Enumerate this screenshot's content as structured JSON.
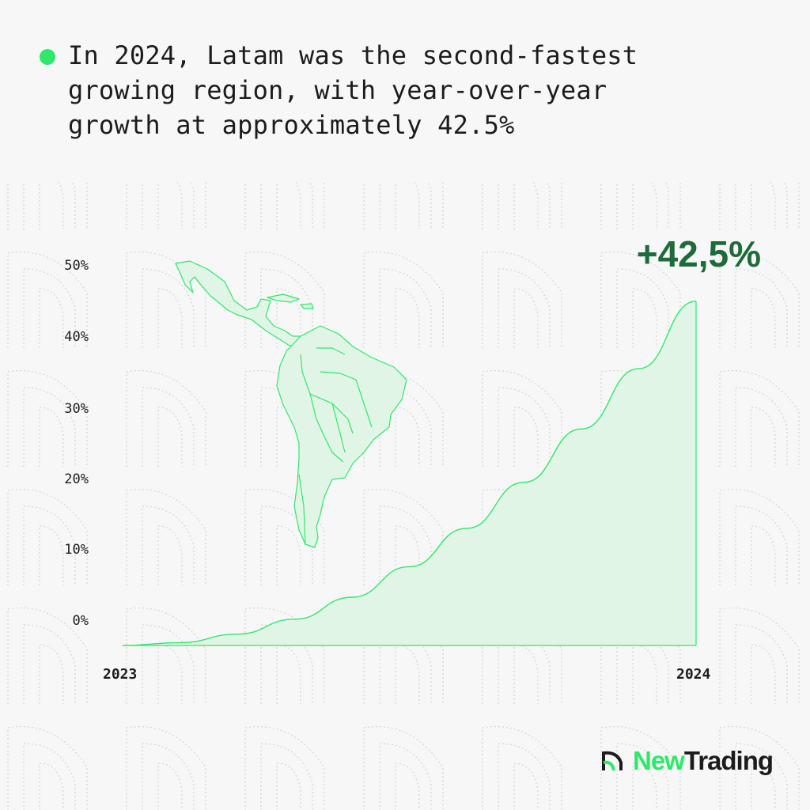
{
  "headline": {
    "text": "In 2024, Latam was the second-fastest\ngrowing region, with year-over-year\ngrowth at approximately 42.5%"
  },
  "brand": {
    "part1": "New",
    "part2": "Trading",
    "logo_icon": "new-trading-logo-icon"
  },
  "colors": {
    "accent": "#2ee86b",
    "accent_dark": "#1e6b3a",
    "fill": "#e1f5e6",
    "text": "#1c1c1c",
    "background": "#f7f7f7"
  },
  "chart_data": {
    "type": "area",
    "title": "",
    "xlabel": "",
    "ylabel": "",
    "categories": [
      "2023",
      "2024"
    ],
    "x": [
      0,
      0.1,
      0.2,
      0.3,
      0.4,
      0.5,
      0.6,
      0.7,
      0.8,
      0.9,
      1.0
    ],
    "values": [
      -3.5,
      -3.1,
      -1.9,
      0.2,
      3.3,
      7.6,
      13.0,
      19.5,
      27.0,
      35.5,
      45.0
    ],
    "yticks": [
      "50%",
      "40%",
      "30%",
      "20%",
      "10%",
      "0%"
    ],
    "ylim": [
      -3.5,
      50
    ],
    "annotation": "+42,5%",
    "grid": false,
    "decoration": "latin-america-map-icon"
  }
}
